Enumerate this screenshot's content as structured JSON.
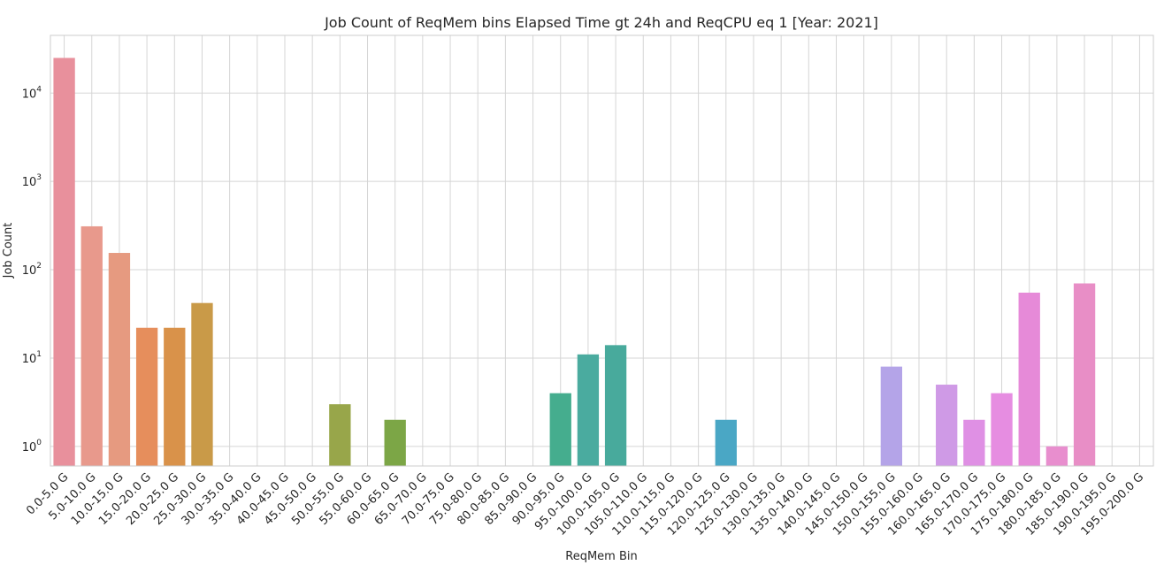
{
  "chart_data": {
    "type": "bar",
    "title": "Job Count of ReqMem bins Elapsed Time gt 24h and ReqCPU eq 1 [Year: 2021]",
    "xlabel": "ReqMem Bin",
    "ylabel": "Job Count",
    "yscale": "log",
    "ylim": [
      0.6,
      45000
    ],
    "yticks": [
      {
        "base": "10",
        "exp": "0"
      },
      {
        "base": "10",
        "exp": "1"
      },
      {
        "base": "10",
        "exp": "2"
      },
      {
        "base": "10",
        "exp": "3"
      },
      {
        "base": "10",
        "exp": "4"
      }
    ],
    "grid": true,
    "categories": [
      "0.0-5.0 G",
      "5.0-10.0 G",
      "10.0-15.0 G",
      "15.0-20.0 G",
      "20.0-25.0 G",
      "25.0-30.0 G",
      "30.0-35.0 G",
      "35.0-40.0 G",
      "40.0-45.0 G",
      "45.0-50.0 G",
      "50.0-55.0 G",
      "55.0-60.0 G",
      "60.0-65.0 G",
      "65.0-70.0 G",
      "70.0-75.0 G",
      "75.0-80.0 G",
      "80.0-85.0 G",
      "85.0-90.0 G",
      "90.0-95.0 G",
      "95.0-100.0 G",
      "100.0-105.0 G",
      "105.0-110.0 G",
      "110.0-115.0 G",
      "115.0-120.0 G",
      "120.0-125.0 G",
      "125.0-130.0 G",
      "130.0-135.0 G",
      "135.0-140.0 G",
      "140.0-145.0 G",
      "145.0-150.0 G",
      "150.0-155.0 G",
      "155.0-160.0 G",
      "160.0-165.0 G",
      "165.0-170.0 G",
      "170.0-175.0 G",
      "175.0-180.0 G",
      "180.0-185.0 G",
      "185.0-190.0 G",
      "190.0-195.0 G",
      "195.0-200.0 G"
    ],
    "values": [
      25000,
      310,
      155,
      22,
      22,
      42,
      0,
      0,
      0,
      0,
      3,
      0,
      2,
      0,
      0,
      0,
      0,
      0,
      4,
      11,
      14,
      0,
      0,
      0,
      2,
      0,
      0,
      0,
      0,
      0,
      8,
      0,
      5,
      2,
      4,
      55,
      1,
      70,
      0,
      0
    ],
    "colors": [
      "#e8909c",
      "#e8998c",
      "#e69a80",
      "#e68e5c",
      "#d9924a",
      "#c99a48",
      "#b9a146",
      "#aaa445",
      "#9aa745",
      "#8ba946",
      "#98a64a",
      "#78a93f",
      "#7ca646",
      "#5eae58",
      "#52b07a",
      "#4daf8a",
      "#4bae93",
      "#4aad98",
      "#45ad8e",
      "#4aab9f",
      "#48aa9c",
      "#4caaa8",
      "#4ea9b1",
      "#50aab9",
      "#4aa7c5",
      "#61a5d1",
      "#7ea2dc",
      "#949fe3",
      "#a59de8",
      "#b09ce8",
      "#b4a4e8",
      "#c89ce8",
      "#cf9ae6",
      "#df90e4",
      "#e68de1",
      "#e68ad8",
      "#e88ece",
      "#e88ec6",
      "#e893be",
      "#e897b4"
    ]
  }
}
